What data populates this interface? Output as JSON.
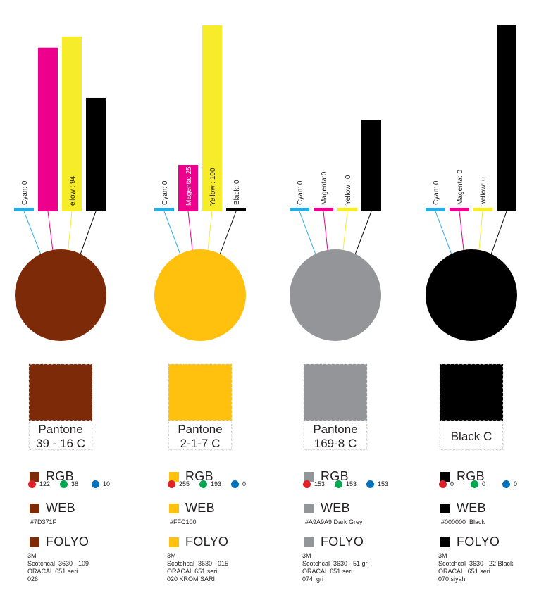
{
  "chart_data": [
    {
      "type": "bar",
      "categories": [
        "Cyan",
        "Magenta",
        "Yellow",
        "Black"
      ],
      "values": [
        0,
        88,
        94,
        61
      ],
      "labels": [
        "Cyan: 0",
        "",
        "ellow : 94",
        ""
      ],
      "swatch_color": "#7D371F",
      "pantone": [
        "Pantone",
        "39 - 16 C"
      ],
      "rgb": [
        "122",
        "38",
        "10"
      ],
      "web": "#7D371F",
      "folyo": [
        "3M",
        "Scotchcal  3630 - 109",
        "ORACAL 651 seri",
        "026"
      ]
    },
    {
      "type": "bar",
      "categories": [
        "Cyan",
        "Magenta",
        "Yellow",
        "Black"
      ],
      "values": [
        0,
        25,
        100,
        0
      ],
      "labels": [
        "Cyan: 0",
        "Magenta: 25",
        "Yellow : 100",
        "Black: 0"
      ],
      "swatch_color": "#FFC100",
      "pantone": [
        "Pantone",
        "2-1-7 C"
      ],
      "rgb": [
        "255",
        "193",
        "0"
      ],
      "web": "#FFC100",
      "folyo": [
        "3M",
        "Scotchcal  3630 - 015",
        "ORACAL 651 seri",
        "020 KROM SARI"
      ]
    },
    {
      "type": "bar",
      "categories": [
        "Cyan",
        "Magenta",
        "Yellow",
        "Black"
      ],
      "values": [
        0,
        0,
        0,
        49
      ],
      "labels": [
        "Cyan: 0",
        "Magenta:0",
        "Yellow : 0",
        ""
      ],
      "swatch_color": "#A9A9A9",
      "pantone": [
        "Pantone",
        "169-8 C"
      ],
      "rgb": [
        "153",
        "153",
        "153"
      ],
      "web": "#A9A9A9 Dark Grey",
      "folyo": [
        "3M",
        "Scotchcal  3630 - 51 gri",
        "ORACAL 651 seri",
        "074  gri"
      ]
    },
    {
      "type": "bar",
      "categories": [
        "Cyan",
        "Magenta",
        "Yellow",
        "Black"
      ],
      "values": [
        0,
        0,
        0,
        100
      ],
      "labels": [
        "Cyan: 0",
        "Magenta: 0",
        "Yellow: 0",
        ""
      ],
      "swatch_color": "#000000",
      "pantone": [
        "Black C"
      ],
      "rgb": [
        "0",
        "0",
        "0"
      ],
      "web": "#000000  Black",
      "folyo": [
        "3M",
        "Scotchcal  3630 - 22 Black",
        "ORACAL  651 seri",
        "070 siyah"
      ]
    }
  ],
  "legend": {
    "rgb": "RGB",
    "web": "WEB",
    "folyo": "FOLYO"
  },
  "colors": {
    "cyan": "#29ABE2",
    "magenta": "#EC008C",
    "yellow": "#F7EC2A",
    "black": "#000000",
    "red_dot": "#E02027",
    "green_dot": "#00A650",
    "blue_dot": "#0072BC",
    "circles": [
      "#7D2A08",
      "#FFC10E",
      "#939598",
      "#000000"
    ],
    "swatch_squares": [
      "#7D2A08",
      "#FFC10E",
      "#939598",
      "#000000"
    ]
  }
}
